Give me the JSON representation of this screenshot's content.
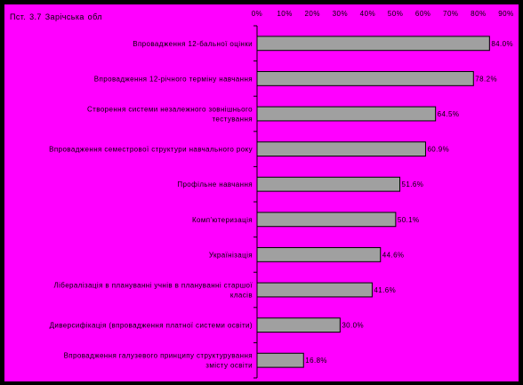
{
  "chart_data": {
    "type": "bar",
    "orientation": "horizontal",
    "title": "Пст. 3.7 Зарічська обл",
    "xlabel": "",
    "ylabel": "",
    "xlim": [
      0,
      90
    ],
    "x_ticks": [
      "0%",
      "10%",
      "20%",
      "30%",
      "40%",
      "50%",
      "60%",
      "70%",
      "80%",
      "90%"
    ],
    "x_axis_position": "top",
    "grid": false,
    "legend": "none",
    "bar_color": "#A0A0A0",
    "background_color": "#FF00FF",
    "categories": [
      [
        "Впровадження 12-бальної оцінки"
      ],
      [
        "Впровадження 12-річного терміну навчання"
      ],
      [
        "Створення системи незалежного зовнішнього",
        "тестування"
      ],
      [
        "Впровадження семестрової структури навчального року"
      ],
      [
        "Профільне навчання"
      ],
      [
        "Комп'ютеризація"
      ],
      [
        "Українізація"
      ],
      [
        "Лібералізація в плануванні учнів в плануванні старшої",
        "класів"
      ],
      [
        "Диверсифікація (впровадження платної системи освіти)"
      ],
      [
        "Впровадження галузевого принципу структурування",
        "змісту освіти"
      ]
    ],
    "values": [
      84.0,
      78.2,
      64.5,
      60.9,
      51.6,
      50.1,
      44.6,
      41.6,
      30.0,
      16.8
    ],
    "value_labels": [
      "84.0%",
      "78.2%",
      "64.5%",
      "60.9%",
      "51.6%",
      "50.1%",
      "44.6%",
      "41.6%",
      "30.0%",
      "16.8%"
    ]
  }
}
